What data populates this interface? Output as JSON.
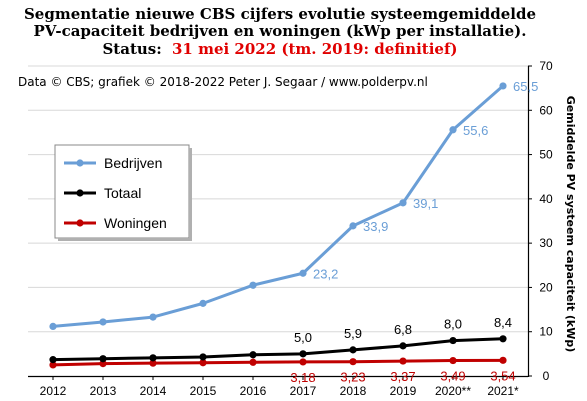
{
  "chart_data": {
    "type": "line",
    "title": {
      "line1": "Segmentatie nieuwe CBS cijfers evolutie systeemgemiddelde",
      "line2": "PV-capaciteit bedrijven en woningen (kWp per installatie).",
      "status_label": "Status:",
      "status_value": "31 mei 2022 (tm. 2019: definitief)"
    },
    "credit": "Data © CBS; grafiek © 2018-2022 Peter J. Segaar / www.polderpv.nl",
    "ylabel": "Gemiddelde PV systeem capaciteit (kWp)",
    "ylim": [
      0,
      70
    ],
    "yticks": [
      0,
      10,
      20,
      30,
      40,
      50,
      60,
      70
    ],
    "categories": [
      "2012",
      "2013",
      "2014",
      "2015",
      "2016",
      "2017",
      "2018",
      "2019",
      "2020**",
      "2021*"
    ],
    "series": [
      {
        "name": "Bedrijven",
        "color": "#6a9ed6",
        "values": [
          11.2,
          12.2,
          13.3,
          16.4,
          20.5,
          23.2,
          33.9,
          39.1,
          55.6,
          65.5
        ],
        "labels": [
          "",
          "",
          "",
          "",
          "",
          "23,2",
          "33,9",
          "39,1",
          "55,6",
          "65,5"
        ]
      },
      {
        "name": "Totaal",
        "color": "#000000",
        "values": [
          3.7,
          3.9,
          4.1,
          4.3,
          4.8,
          5.0,
          5.9,
          6.8,
          8.0,
          8.4
        ],
        "labels": [
          "",
          "",
          "",
          "",
          "",
          "5,0",
          "5,9",
          "6,8",
          "8,0",
          "8,4"
        ]
      },
      {
        "name": "Woningen",
        "color": "#c00000",
        "values": [
          2.5,
          2.8,
          2.9,
          3.0,
          3.1,
          3.18,
          3.23,
          3.37,
          3.49,
          3.54
        ],
        "labels": [
          "",
          "",
          "",
          "",
          "",
          "3,18",
          "3,23",
          "3,37",
          "3,49",
          "3,54"
        ]
      }
    ],
    "legend_position": "left"
  },
  "colors": {
    "title_accent": "#e00000",
    "grid": "#d8d8d8"
  }
}
